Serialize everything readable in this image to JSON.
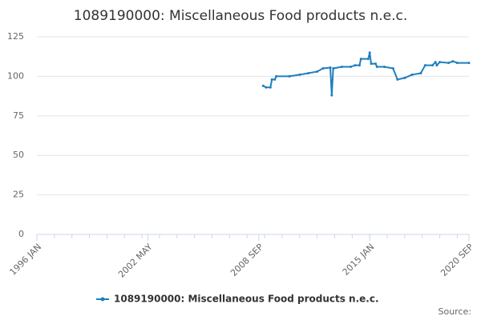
{
  "chart_data": {
    "type": "line",
    "title": "1089190000: Miscellaneous Food products n.e.c.",
    "source": "Source:",
    "xlim": [
      "1996 JAN",
      "2020 SEP"
    ],
    "xticks": [
      "1996 JAN",
      "2002 MAY",
      "2008 SEP",
      "2015 JAN",
      "2020 SEP"
    ],
    "ylim": [
      0,
      125
    ],
    "yticks": [
      0,
      25,
      50,
      75,
      100,
      125
    ],
    "grid": true,
    "x": [
      "2008 DEC",
      "2009 FEB",
      "2009 MAY",
      "2009 JUN",
      "2009 AUG",
      "2009 SEP",
      "2010 JUN",
      "2011 JAN",
      "2011 JUL",
      "2012 JAN",
      "2012 MAY",
      "2012 OCT",
      "2012 NOV",
      "2012 DEC",
      "2013 JUN",
      "2013 DEC",
      "2014 MAR",
      "2014 JUN",
      "2014 JUL",
      "2014 DEC",
      "2015 JAN",
      "2015 FEB",
      "2015 MAY",
      "2015 JUN",
      "2015 NOV",
      "2016 MAY",
      "2016 AUG",
      "2017 JAN",
      "2017 JUN",
      "2017 DEC",
      "2018 MAR",
      "2018 AUG",
      "2018 OCT",
      "2018 NOV",
      "2019 JAN",
      "2019 JUL",
      "2019 OCT",
      "2020 JAN",
      "2020 SEP"
    ],
    "series": [
      {
        "name": "1089190000: Miscellaneous Food products n.e.c.",
        "color": "#1f7fbf",
        "values": [
          94,
          93,
          93,
          98,
          98,
          100,
          100,
          101,
          102,
          103,
          105,
          105.5,
          88,
          105,
          106,
          106,
          107,
          107,
          111,
          111,
          115,
          108,
          108,
          106,
          106,
          105,
          98,
          99,
          101,
          102,
          107,
          107,
          109,
          107,
          109,
          108.5,
          109.5,
          108.5,
          108.5
        ]
      }
    ]
  }
}
